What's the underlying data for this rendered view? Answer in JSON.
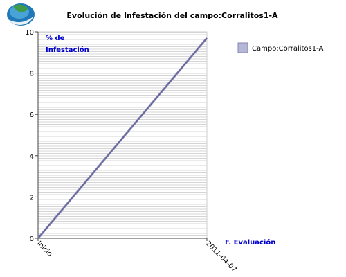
{
  "logo": {
    "icon": "globe-hand-logo-icon"
  },
  "chart_data": {
    "type": "line",
    "title": "Evolución de Infestación del campo:Corralitos1-A",
    "ylabel_line1": "% de",
    "ylabel_line2": "Infestación",
    "xlabel": "F. Evaluación",
    "categories": [
      "Inicio",
      "2011-04-07"
    ],
    "series": [
      {
        "name": "Campo:Corralitos1-A",
        "values": [
          0,
          9.7
        ],
        "color": "#8484b4"
      }
    ],
    "ylim": [
      0,
      10
    ],
    "yticks": [
      "0",
      "2",
      "4",
      "6",
      "8",
      "10"
    ],
    "grid": true,
    "legend": "top-right"
  }
}
